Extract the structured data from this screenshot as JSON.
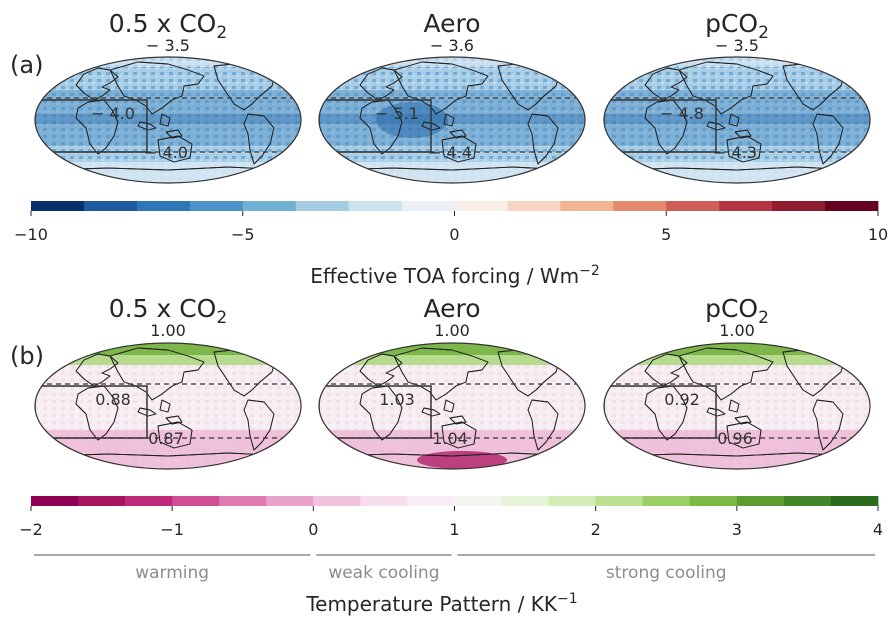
{
  "row_a": {
    "panel_label": "(a)",
    "maps": [
      {
        "title": "0.5 x CO",
        "sub": "2",
        "global": "− 3.5",
        "box": "− 4.0",
        "tropics": "− 4.0"
      },
      {
        "title": "Aero",
        "sub": "",
        "global": "− 3.6",
        "box": "− 5.1",
        "tropics": "− 4.4"
      },
      {
        "title": "pCO",
        "sub": "2",
        "global": "− 3.5",
        "box": "− 4.8",
        "tropics": "− 4.3"
      }
    ],
    "colorbar": {
      "ticks": [
        "−10",
        "−5",
        "0",
        "5",
        "10"
      ],
      "label": "Effective TOA forcing / Wm",
      "label_sup": "−2",
      "colors": [
        "#08306b",
        "#1d5a9e",
        "#2f76b6",
        "#4b93c7",
        "#73b0d6",
        "#a4cce3",
        "#cde2ef",
        "#e9f1f7",
        "#faeee8",
        "#f9d4c2",
        "#f2b395",
        "#e38a6e",
        "#cd5f56",
        "#b23342",
        "#901a2e",
        "#67001f"
      ]
    },
    "map_palette": {
      "ocean": "#a8cde6",
      "ocean_deep": "#4c8ec4",
      "land": "#5a9ccd",
      "band": "#2a6aa9",
      "south": "#d7e8f3",
      "polar": "#eef4f9"
    }
  },
  "row_b": {
    "panel_label": "(b)",
    "maps": [
      {
        "title": "0.5 x CO",
        "sub": "2",
        "global": "1.00",
        "box": "0.88",
        "tropics": "0.87"
      },
      {
        "title": "Aero",
        "sub": "",
        "global": "1.00",
        "box": "1.03",
        "tropics": "1.04"
      },
      {
        "title": "pCO",
        "sub": "2",
        "global": "1.00",
        "box": "0.92",
        "tropics": "0.96"
      }
    ],
    "colorbar": {
      "ticks": [
        "−2",
        "−1",
        "0",
        "1",
        "2",
        "3",
        "4"
      ],
      "label": "Temperature Pattern / KK",
      "label_sup": "−1",
      "colors": [
        "#8e0152",
        "#a7145f",
        "#c0287a",
        "#d14f96",
        "#df7bb1",
        "#e8a2c9",
        "#f1c4de",
        "#f8dded",
        "#f9edf3",
        "#f4f6f0",
        "#e8f4d8",
        "#d3ecb6",
        "#b9df8f",
        "#9bce67",
        "#7cb947",
        "#5e9e30",
        "#44852a",
        "#2c6a1d"
      ],
      "brackets": [
        {
          "label": "warming",
          "from": -2,
          "to": 0
        },
        {
          "label": "weak cooling",
          "from": 0,
          "to": 1
        },
        {
          "label": "strong cooling",
          "from": 1,
          "to": 4
        }
      ]
    },
    "map_palette": {
      "ocean": "#f6eef3",
      "ocean2": "#f2d4e4",
      "land": "#e9f3e2",
      "north": "#7db64a",
      "north2": "#b7db8e",
      "south": "#ecb1d1",
      "south_deep": "#b3286e"
    }
  }
}
